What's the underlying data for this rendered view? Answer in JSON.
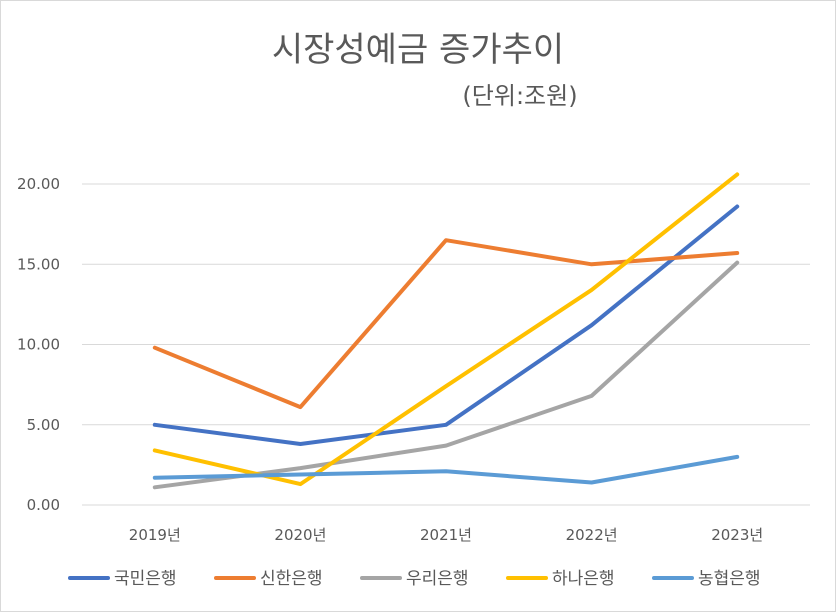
{
  "chart_data": {
    "type": "line",
    "title": "시장성예금 증가추이",
    "subtitle": "(단위:조원)",
    "categories": [
      "2019년",
      "2020년",
      "2021년",
      "2022년",
      "2023년"
    ],
    "ylim": [
      0,
      20
    ],
    "yticks": [
      "0.00",
      "5.00",
      "10.00",
      "15.00",
      "20.00"
    ],
    "ytick_values": [
      0,
      5,
      10,
      15,
      20
    ],
    "grid": true,
    "legend": "bottom",
    "series": [
      {
        "name": "국민은행",
        "color": "#4472c4",
        "values": [
          5.0,
          3.8,
          5.0,
          11.2,
          18.6
        ]
      },
      {
        "name": "신한은행",
        "color": "#ed7d31",
        "values": [
          9.8,
          6.1,
          16.5,
          15.0,
          15.7
        ]
      },
      {
        "name": "우리은행",
        "color": "#a5a5a5",
        "values": [
          1.1,
          2.3,
          3.7,
          6.8,
          15.1
        ]
      },
      {
        "name": "하나은행",
        "color": "#ffc000",
        "values": [
          3.4,
          1.3,
          7.4,
          13.4,
          20.6
        ]
      },
      {
        "name": "농협은행",
        "color": "#5b9bd5",
        "values": [
          1.7,
          1.9,
          2.1,
          1.4,
          3.0
        ]
      }
    ]
  }
}
